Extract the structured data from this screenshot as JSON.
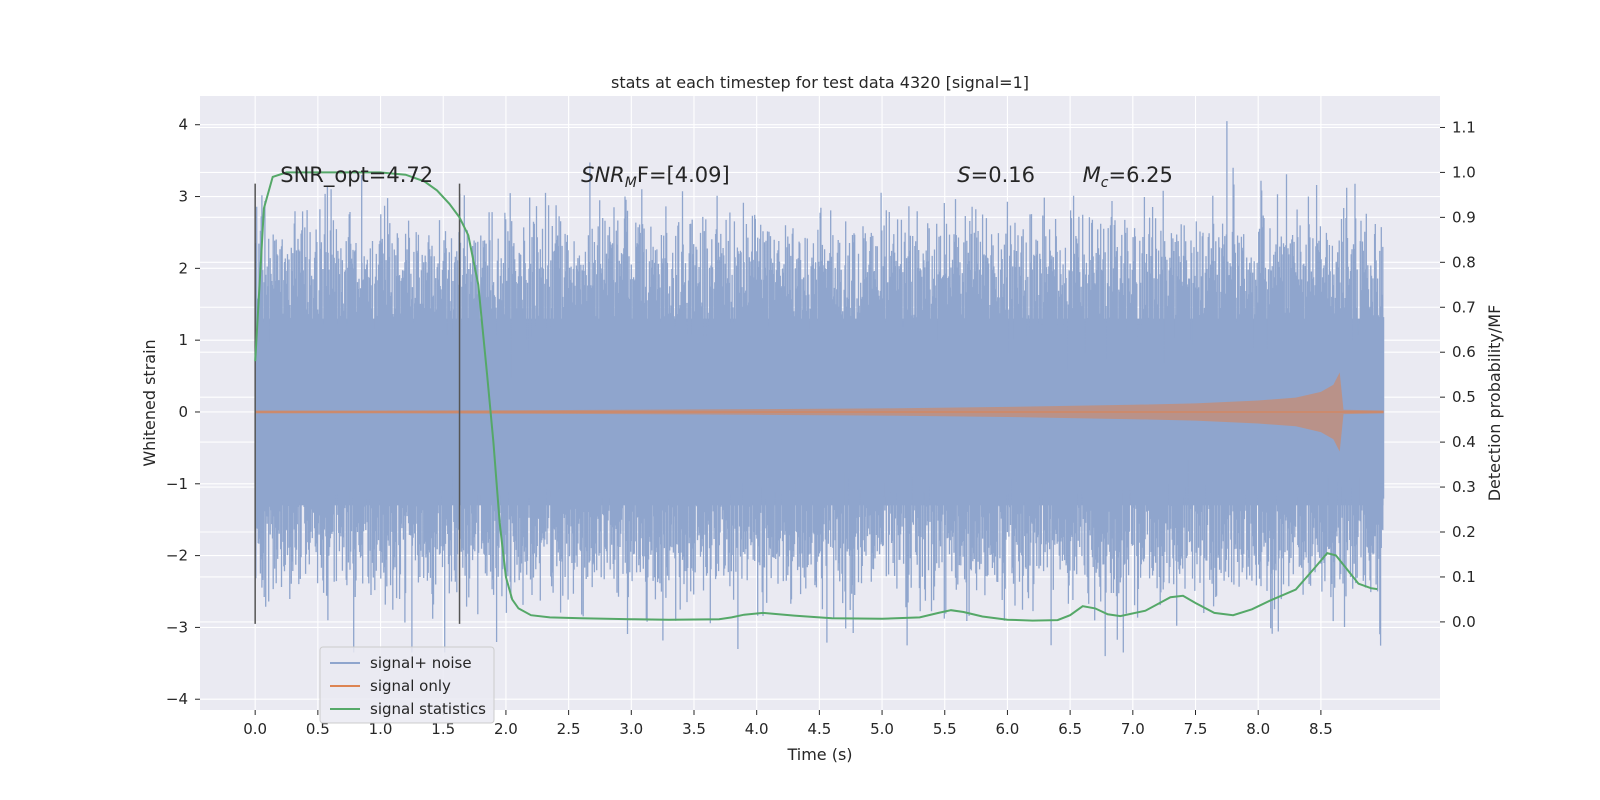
{
  "chart_data": {
    "type": "line",
    "title": "stats at each timestep for test data 4320 [signal=1]",
    "xlabel": "Time (s)",
    "ylabel": "Whitened strain",
    "ylabel_right": "Detection probability/MF",
    "xlim": [
      -0.44,
      9.45
    ],
    "ylim": [
      -4.15,
      4.4
    ],
    "ylim_right": [
      -0.196,
      1.17
    ],
    "x_ticks": [
      0.0,
      0.5,
      1.0,
      1.5,
      2.0,
      2.5,
      3.0,
      3.5,
      4.0,
      4.5,
      5.0,
      5.5,
      6.0,
      6.5,
      7.0,
      7.5,
      8.0,
      8.5
    ],
    "x_tick_labels": [
      "0.0",
      "0.5",
      "1.0",
      "1.5",
      "2.0",
      "2.5",
      "3.0",
      "3.5",
      "4.0",
      "4.5",
      "5.0",
      "5.5",
      "6.0",
      "6.5",
      "7.0",
      "7.5",
      "8.0",
      "8.5"
    ],
    "y_ticks": [
      -4,
      -3,
      -2,
      -1,
      0,
      1,
      2,
      3,
      4
    ],
    "y_tick_labels": [
      "−4",
      "−3",
      "−2",
      "−1",
      "0",
      "1",
      "2",
      "3",
      "4"
    ],
    "y_ticks_right": [
      0.0,
      0.1,
      0.2,
      0.3,
      0.4,
      0.5,
      0.6,
      0.7,
      0.8,
      0.9,
      1.0,
      1.1
    ],
    "y_tick_labels_right": [
      "0.0",
      "0.1",
      "0.2",
      "0.3",
      "0.4",
      "0.5",
      "0.6",
      "0.7",
      "0.8",
      "0.9",
      "1.0",
      "1.1"
    ],
    "grid": true,
    "legend_position": "lower-left",
    "colors": {
      "background": "#eaeaf2",
      "grid": "#ffffff",
      "signal_noise": "#8fa5cd",
      "signal_only": "#dd8452",
      "signal_stats": "#55a868",
      "vline": "#555555"
    },
    "annotations": [
      {
        "text": "SNR_opt=4.72",
        "x": 0.2,
        "y": 3.2
      },
      {
        "prefix": "SNR",
        "sub": "M",
        "suffix": "F=[4.09]",
        "x": 2.6,
        "y": 3.2
      },
      {
        "prefix": "S",
        "sub": "",
        "suffix": "=0.16",
        "x": 5.6,
        "y": 3.2
      },
      {
        "prefix": "M",
        "sub": "c",
        "suffix": "=6.25",
        "x": 6.6,
        "y": 3.2
      }
    ],
    "vlines": [
      {
        "x": 0.0,
        "y0": -2.95,
        "y1": 3.18
      },
      {
        "x": 1.63,
        "y0": -2.95,
        "y1": 3.18
      }
    ],
    "series": [
      {
        "name": "signal+ noise",
        "axis": "left",
        "t_start": 0.0,
        "t_end": 9.0,
        "core_band": [
          -1.3,
          1.3
        ],
        "typical_extent": [
          -1.9,
          2.0
        ],
        "max_excursion": [
          -3.35,
          4.05
        ]
      },
      {
        "name": "signal only",
        "axis": "left",
        "envelope_x": [
          0.0,
          1.0,
          2.0,
          3.0,
          4.0,
          5.0,
          6.0,
          7.0,
          7.5,
          8.0,
          8.3,
          8.5,
          8.6,
          8.65,
          8.68,
          9.0
        ],
        "envelope_amp": [
          0.02,
          0.02,
          0.025,
          0.03,
          0.04,
          0.05,
          0.07,
          0.1,
          0.12,
          0.16,
          0.2,
          0.28,
          0.38,
          0.55,
          0.03,
          0.02
        ]
      },
      {
        "name": "signal statistics",
        "axis": "right",
        "x": [
          0.0,
          0.07,
          0.14,
          0.25,
          0.5,
          1.0,
          1.2,
          1.35,
          1.45,
          1.55,
          1.63,
          1.7,
          1.78,
          1.85,
          1.9,
          1.95,
          2.0,
          2.05,
          2.1,
          2.2,
          2.35,
          2.6,
          3.0,
          3.3,
          3.7,
          3.8,
          3.9,
          4.05,
          4.3,
          4.6,
          5.0,
          5.3,
          5.45,
          5.55,
          5.65,
          5.8,
          6.0,
          6.2,
          6.4,
          6.5,
          6.6,
          6.7,
          6.8,
          6.9,
          7.1,
          7.3,
          7.4,
          7.5,
          7.65,
          7.8,
          7.95,
          8.1,
          8.3,
          8.45,
          8.55,
          8.62,
          8.7,
          8.8,
          8.9,
          8.95
        ],
        "y": [
          0.58,
          0.92,
          0.99,
          1.0,
          1.0,
          1.0,
          0.995,
          0.98,
          0.96,
          0.93,
          0.9,
          0.86,
          0.75,
          0.55,
          0.4,
          0.22,
          0.1,
          0.05,
          0.03,
          0.015,
          0.01,
          0.008,
          0.006,
          0.005,
          0.006,
          0.01,
          0.016,
          0.02,
          0.014,
          0.008,
          0.007,
          0.01,
          0.02,
          0.026,
          0.022,
          0.012,
          0.005,
          0.003,
          0.004,
          0.015,
          0.035,
          0.03,
          0.017,
          0.013,
          0.025,
          0.055,
          0.058,
          0.042,
          0.02,
          0.015,
          0.028,
          0.048,
          0.072,
          0.12,
          0.153,
          0.148,
          0.12,
          0.085,
          0.075,
          0.073
        ]
      }
    ]
  }
}
